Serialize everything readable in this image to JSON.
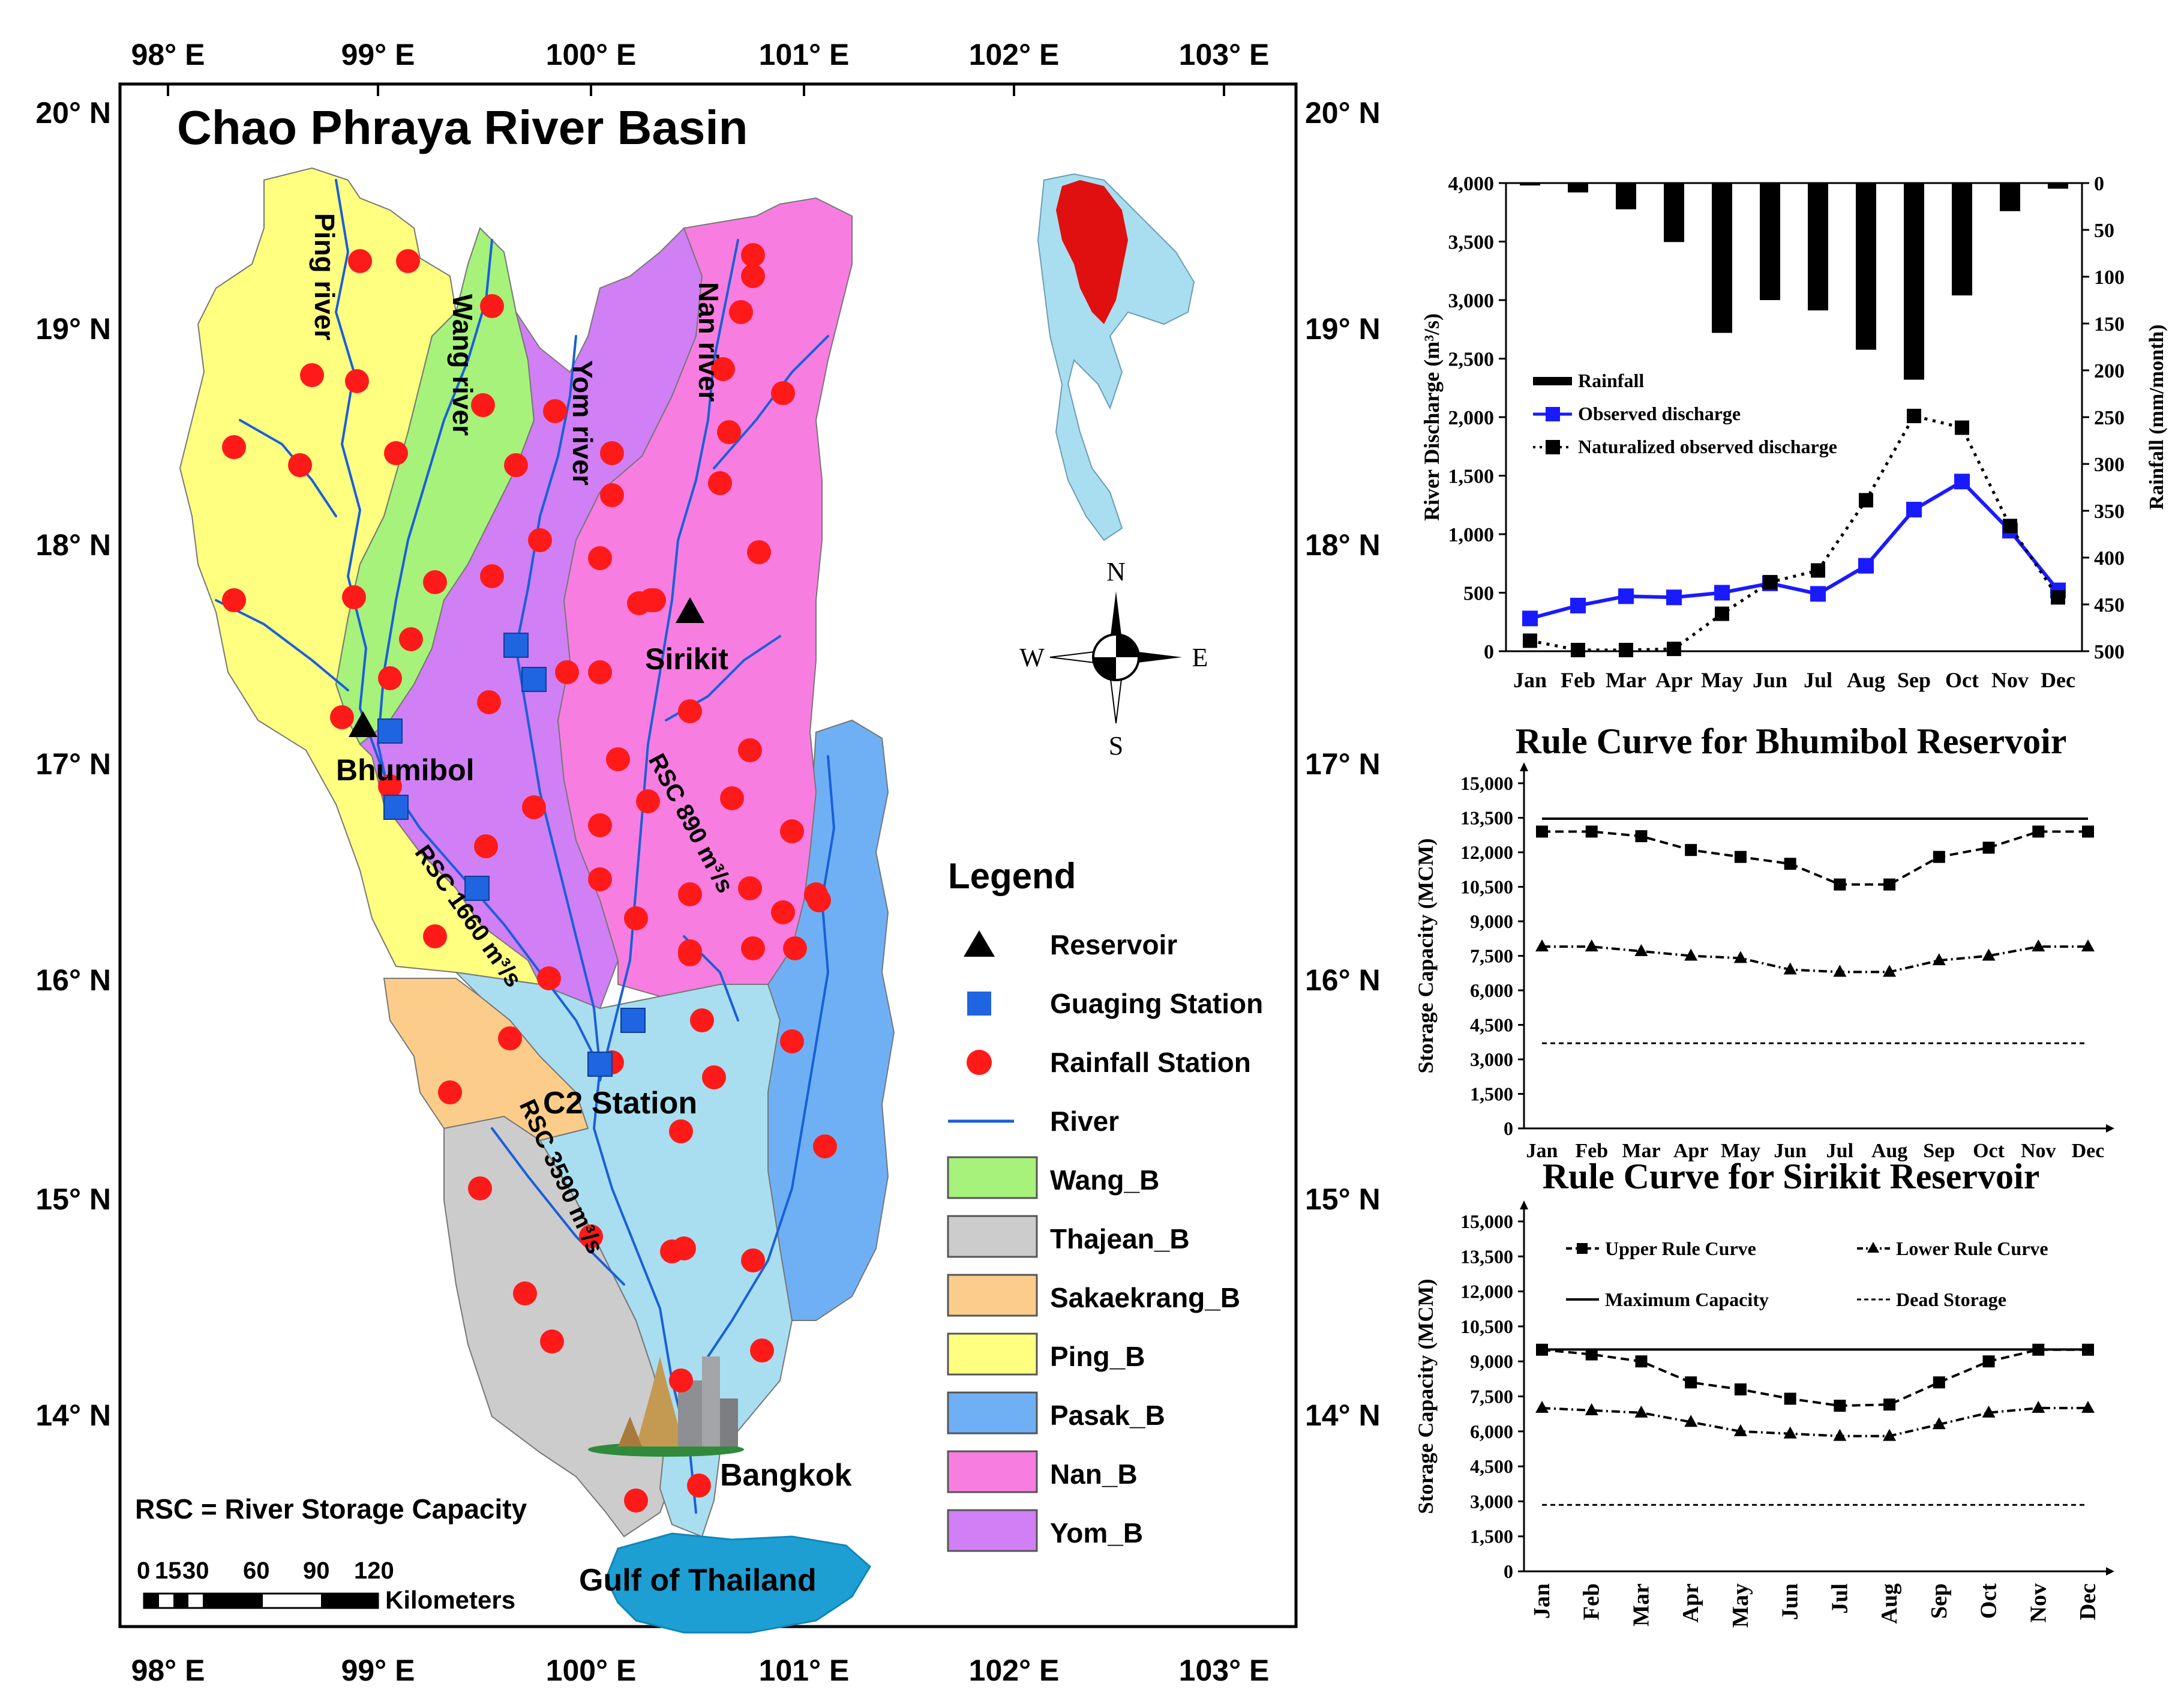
{
  "map": {
    "title": "Chao Phraya River Basin",
    "lon_ticks": [
      "98° E",
      "99° E",
      "100° E",
      "101° E",
      "102° E",
      "103° E"
    ],
    "lat_ticks": [
      "20° N",
      "19° N",
      "18° N",
      "17° N",
      "16° N",
      "15° N",
      "14° N"
    ],
    "rivers": [
      "Ping river",
      "Wang river",
      "Yom river",
      "Nan river"
    ],
    "reservoirs": [
      "Bhumibol",
      "Sirikit"
    ],
    "station": "C2 Station",
    "city": "Bangkok",
    "sea": "Gulf of Thailand",
    "rsc_labels": [
      "RSC 1660 m³/s",
      "RSC 890 m³/s",
      "RSC 3590 m³/s"
    ],
    "rsc_note": "RSC = River Storage Capacity",
    "scale_ticks": [
      "0",
      "15",
      "30",
      "60",
      "90",
      "120"
    ],
    "scale_unit": "Kilometers",
    "compass": {
      "n": "N",
      "s": "S",
      "e": "E",
      "w": "W"
    },
    "colors": {
      "Wang_B": "#a6f27a",
      "Thajean_B": "#cccccc",
      "Sakaekrang_B": "#fccd8a",
      "Ping_B": "#ffff80",
      "Pasak_B": "#6fb0f5",
      "Nan_B": "#f77ee0",
      "Yom_B": "#d17ff5",
      "Chao_B": "#a9def0",
      "river": "#1a5fd9",
      "rain": "#ff1a1a",
      "gauge": "#1f64e0"
    }
  },
  "legend": {
    "title": "Legend",
    "items": [
      {
        "key": "reservoir",
        "label": "Reservoir"
      },
      {
        "key": "gauge",
        "label": "Guaging Station"
      },
      {
        "key": "rain",
        "label": "Rainfall Station"
      },
      {
        "key": "river",
        "label": "River"
      },
      {
        "key": "Wang_B",
        "label": "Wang_B"
      },
      {
        "key": "Thajean_B",
        "label": "Thajean_B"
      },
      {
        "key": "Sakaekrang_B",
        "label": "Sakaekrang_B"
      },
      {
        "key": "Ping_B",
        "label": "Ping_B"
      },
      {
        "key": "Pasak_B",
        "label": "Pasak_B"
      },
      {
        "key": "Nan_B",
        "label": "Nan_B"
      },
      {
        "key": "Yom_B",
        "label": "Yom_B"
      }
    ]
  },
  "chart_data": [
    {
      "type": "bar+line",
      "categories": [
        "Jan",
        "Feb",
        "Mar",
        "Apr",
        "May",
        "Jun",
        "Jul",
        "Aug",
        "Sep",
        "Oct",
        "Nov",
        "Dec"
      ],
      "ylabel": "River Discharge (m³/s)",
      "y2label": "Rainfall (mm/month)",
      "ylim": [
        0,
        4000
      ],
      "yticks": [
        "0",
        "500",
        "1,000",
        "1,500",
        "2,000",
        "2,500",
        "3,000",
        "3,500",
        "4,000"
      ],
      "y2lim": [
        0,
        500
      ],
      "y2ticks": [
        "0",
        "50",
        "100",
        "150",
        "200",
        "250",
        "300",
        "350",
        "400",
        "450",
        "500"
      ],
      "series": [
        {
          "name": "Rainfall",
          "kind": "bar",
          "axis": "right",
          "values": [
            2,
            10,
            28,
            63,
            160,
            125,
            136,
            178,
            210,
            120,
            30,
            6
          ]
        },
        {
          "name": "Observed discharge",
          "kind": "line",
          "values": [
            280,
            390,
            470,
            460,
            500,
            580,
            490,
            730,
            1210,
            1450,
            1030,
            520
          ]
        },
        {
          "name": "Naturalized observed discharge",
          "kind": "dotted-line",
          "values": [
            90,
            10,
            10,
            20,
            320,
            590,
            690,
            1290,
            2010,
            1910,
            1070,
            460
          ]
        }
      ]
    },
    {
      "type": "line",
      "title": "Rule Curve for Bhumibol Reservoir",
      "categories": [
        "Jan",
        "Feb",
        "Mar",
        "Apr",
        "May",
        "Jun",
        "Jul",
        "Aug",
        "Sep",
        "Oct",
        "Nov",
        "Dec"
      ],
      "ylabel": "Storage Capacity (MCM)",
      "ylim": [
        0,
        15000
      ],
      "yticks": [
        "0",
        "1,500",
        "3,000",
        "4,500",
        "6,000",
        "7,500",
        "9,000",
        "10,500",
        "12,000",
        "13,500",
        "15,000"
      ],
      "series": [
        {
          "name": "Upper Rule Curve",
          "values": [
            12900,
            12900,
            12700,
            12100,
            11800,
            11500,
            10600,
            10600,
            11800,
            12200,
            12900,
            12900
          ]
        },
        {
          "name": "Lower Rule Curve",
          "values": [
            7900,
            7900,
            7700,
            7500,
            7400,
            6900,
            6800,
            6800,
            7300,
            7500,
            7900,
            7900
          ]
        },
        {
          "name": "Maximum Capacity",
          "values": [
            13460,
            13460,
            13460,
            13460,
            13460,
            13460,
            13460,
            13460,
            13460,
            13460,
            13460,
            13460
          ]
        },
        {
          "name": "Dead Storage",
          "values": [
            3700,
            3700,
            3700,
            3700,
            3700,
            3700,
            3700,
            3700,
            3700,
            3700,
            3700,
            3700
          ]
        }
      ]
    },
    {
      "type": "line",
      "title": "Rule Curve for Sirikit Reservoir",
      "categories": [
        "Jan",
        "Feb",
        "Mar",
        "Apr",
        "May",
        "Jun",
        "Jul",
        "Aug",
        "Sep",
        "Oct",
        "Nov",
        "Dec"
      ],
      "ylabel": "Storage Capacity (MCM)",
      "ylim": [
        0,
        15000
      ],
      "yticks": [
        "0",
        "1,500",
        "3,000",
        "4,500",
        "6,000",
        "7,500",
        "9,000",
        "10,500",
        "12,000",
        "13,500",
        "15,000"
      ],
      "series": [
        {
          "name": "Upper Rule Curve",
          "values": [
            9500,
            9300,
            9000,
            8100,
            7800,
            7400,
            7100,
            7150,
            8100,
            9000,
            9500,
            9500
          ]
        },
        {
          "name": "Lower Rule Curve",
          "values": [
            7000,
            6900,
            6800,
            6400,
            6000,
            5900,
            5800,
            5800,
            6300,
            6800,
            7000,
            7000
          ]
        },
        {
          "name": "Maximum Capacity",
          "values": [
            9510,
            9510,
            9510,
            9510,
            9510,
            9510,
            9510,
            9510,
            9510,
            9510,
            9510,
            9510
          ]
        },
        {
          "name": "Dead Storage",
          "values": [
            2850,
            2850,
            2850,
            2850,
            2850,
            2850,
            2850,
            2850,
            2850,
            2850,
            2850,
            2850
          ]
        }
      ]
    }
  ]
}
